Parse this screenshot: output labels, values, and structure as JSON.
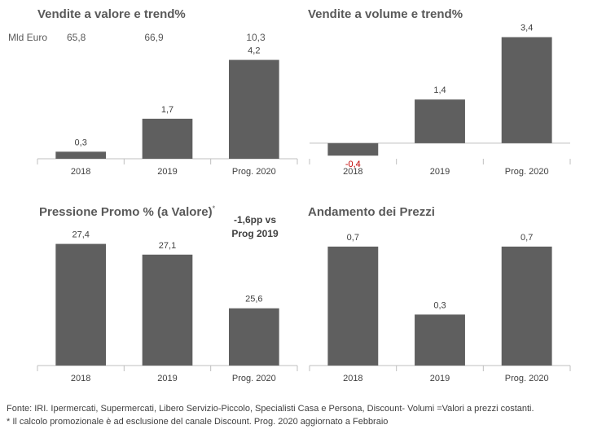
{
  "chart_data": [
    {
      "type": "bar",
      "title": "Vendite a valore e trend%",
      "categories": [
        "2018",
        "2019",
        "Prog. 2020"
      ],
      "values": [
        0.3,
        1.7,
        4.2
      ],
      "value_labels": [
        "0,3",
        "1,7",
        "4,2"
      ],
      "unit_label": "Mld Euro",
      "annotations": [
        "65,8",
        "66,9",
        "10,3"
      ],
      "ylim": [
        0,
        4.6
      ]
    },
    {
      "type": "bar",
      "title": "Vendite a volume e trend%",
      "categories": [
        "2018",
        "2019",
        "Prog. 2020"
      ],
      "values": [
        -0.4,
        1.4,
        3.4
      ],
      "value_labels": [
        "-0,4",
        "1,4",
        "3,4"
      ],
      "ylim": [
        -0.5,
        3.6
      ]
    },
    {
      "type": "bar",
      "title": "Pressione Promo % (a Valore)",
      "title_sup": "*",
      "categories": [
        "2018",
        "2019",
        "Prog. 2020"
      ],
      "values": [
        27.4,
        27.1,
        25.6
      ],
      "value_labels": [
        "27,4",
        "27,1",
        "25,6"
      ],
      "note_lines": [
        "-1,6pp vs",
        "Prog 2019"
      ],
      "ylim": [
        24.0,
        27.8
      ]
    },
    {
      "type": "bar",
      "title": "Andamento dei Prezzi",
      "categories": [
        "2018",
        "2019",
        "Prog. 2020"
      ],
      "values": [
        0.7,
        0.3,
        0.7
      ],
      "value_labels": [
        "0,7",
        "0,3",
        "0,7"
      ],
      "ylim": [
        0,
        0.8
      ]
    }
  ],
  "colors": {
    "bar": "#5f5f5f",
    "axis": "#bfbfbf",
    "negative_label": "#c00000"
  },
  "footnotes": [
    "Fonte: IRI. Ipermercati, Supermercati, Libero Servizio-Piccolo, Specialisti Casa e Persona, Discount- Volumi =Valori a prezzi costanti.",
    "* Il calcolo promozionale è ad esclusione del canale Discount. Prog. 2020 aggiornato a Febbraio"
  ]
}
